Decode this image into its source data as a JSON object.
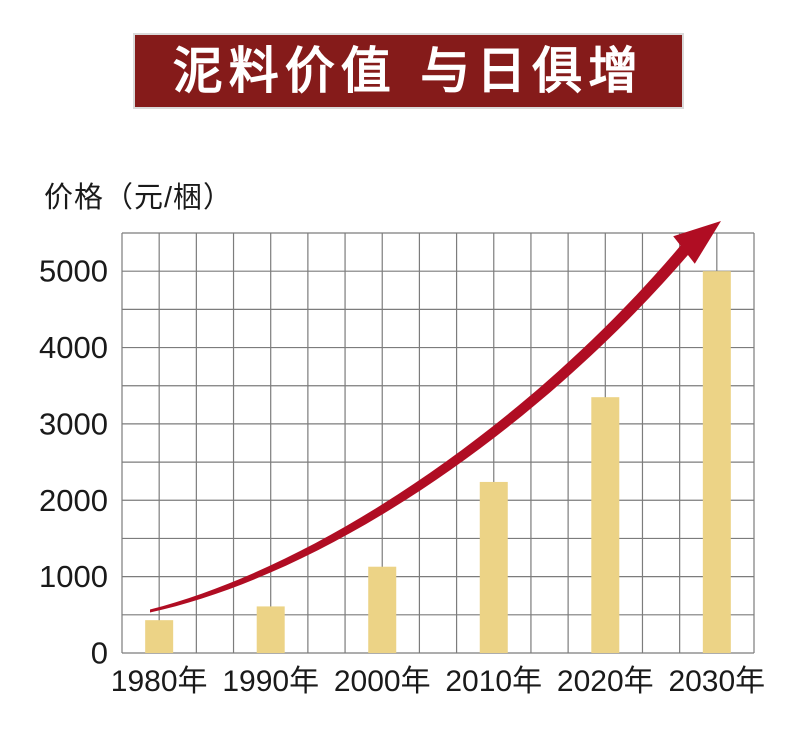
{
  "banner": {
    "title": "泥料价值 与日俱增",
    "bg_color": "#851B1A",
    "text_color": "#FFFFFF"
  },
  "chart_data": {
    "type": "bar",
    "title": "泥料价值 与日俱增",
    "ylabel": "价格（元/梱）",
    "xlabel": "",
    "categories": [
      "1980年",
      "1990年",
      "2000年",
      "2010年",
      "2020年",
      "2030年"
    ],
    "values": [
      430,
      610,
      1130,
      2240,
      3350,
      5000
    ],
    "y_ticks": [
      0,
      1000,
      2000,
      3000,
      4000,
      5000
    ],
    "ylim": [
      0,
      5500
    ],
    "grid": {
      "visible": true,
      "rows": 11,
      "cols": 17,
      "value_per_row": 500,
      "line_color": "#7C7C7C"
    },
    "bar_color": "#ECD386",
    "axis_text_color": "#1A1A1A",
    "legend_position": "none",
    "annotation_arrow": {
      "meaning": "rising-price-trend",
      "color": "#B00D23",
      "tail": [
        150,
        611
      ],
      "control1": [
        330,
        568
      ],
      "control2": [
        540,
        420
      ],
      "head_base": [
        684,
        250
      ],
      "tip": [
        721,
        221
      ]
    }
  }
}
